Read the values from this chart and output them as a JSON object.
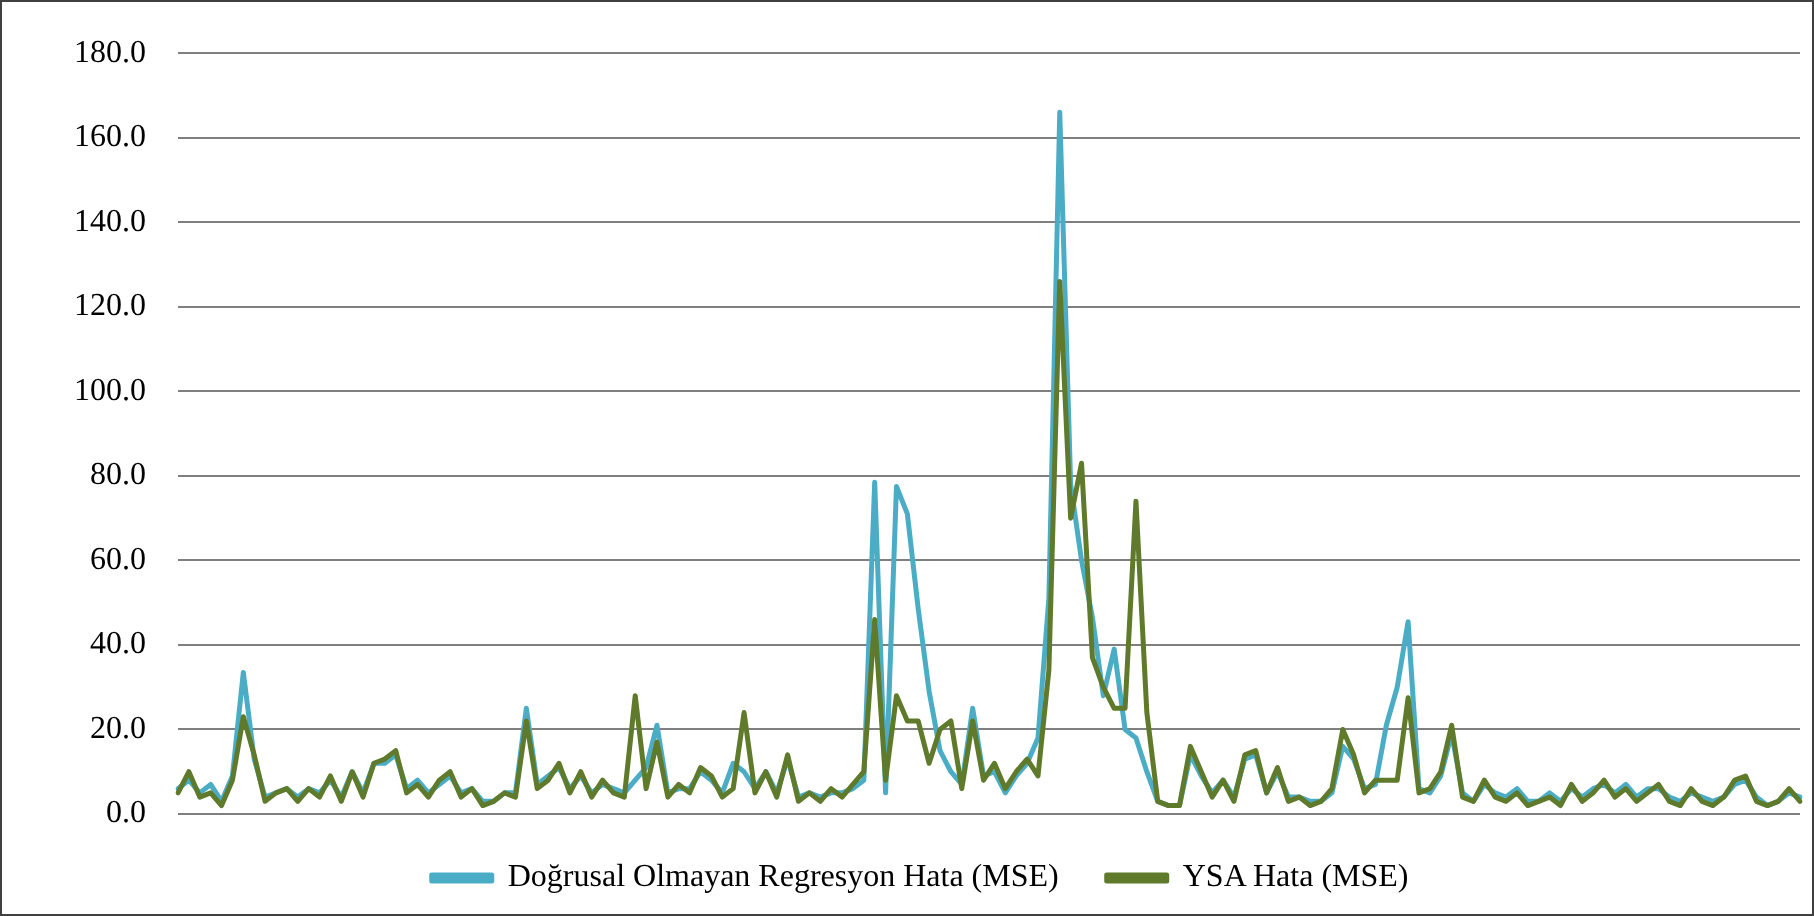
{
  "chart_data": {
    "type": "line",
    "categories": [
      null,
      null,
      null,
      null,
      null,
      null,
      null,
      null,
      null,
      null,
      null,
      null,
      null,
      null,
      null,
      null,
      null,
      null,
      null,
      null,
      null,
      null,
      null,
      null,
      null,
      null,
      null,
      null,
      null,
      null,
      null,
      null,
      null,
      null,
      null,
      null,
      null,
      null,
      null,
      null,
      null,
      null,
      null,
      null,
      null,
      null,
      null,
      null,
      null,
      null,
      null,
      null,
      null,
      null,
      null,
      null,
      null,
      null,
      null,
      null,
      null,
      null,
      null,
      null,
      null,
      null,
      null,
      null,
      null,
      null,
      null,
      null,
      null,
      null,
      null,
      null,
      null,
      null,
      null,
      null,
      null,
      null,
      null,
      null,
      null,
      null,
      null,
      null,
      null,
      null,
      null,
      null,
      null,
      null,
      null,
      null,
      null,
      null,
      null,
      null,
      null,
      null,
      null,
      null,
      null,
      null,
      null,
      null,
      null,
      null,
      null,
      null,
      null,
      null,
      null,
      null,
      null,
      null,
      null,
      null,
      null,
      null,
      null,
      null,
      null,
      null,
      null,
      null,
      null,
      null,
      null,
      null,
      null,
      null,
      null,
      null,
      null,
      null,
      null,
      null,
      null,
      null,
      null,
      null,
      null,
      null,
      null,
      null,
      null,
      null
    ],
    "series": [
      {
        "name": "Doğrusal Olmayan Regresyon Hata (MSE)",
        "color": "#4bacc6",
        "values": [
          6,
          8,
          5,
          7,
          3,
          9,
          33.5,
          13,
          4,
          5,
          6,
          4,
          6,
          5,
          8,
          4,
          10,
          5,
          12,
          12,
          14,
          6,
          8,
          5,
          7,
          9,
          5,
          6,
          3,
          3,
          5,
          5,
          25,
          7,
          9,
          11,
          6,
          9,
          5,
          7,
          6,
          5,
          8,
          11,
          21,
          5,
          6,
          6,
          10,
          8,
          5,
          12,
          10,
          6,
          10,
          5,
          13,
          4,
          5,
          4,
          5,
          5,
          6,
          8,
          78.5,
          5,
          77.5,
          71,
          48.5,
          29,
          15,
          10,
          7,
          25,
          9,
          10,
          5,
          9,
          12,
          18,
          51,
          166,
          78,
          60,
          46.5,
          28,
          39,
          20,
          18,
          10,
          3,
          2,
          2,
          14,
          9,
          5,
          8,
          4,
          13,
          14,
          5,
          10,
          4,
          4,
          3,
          3,
          5,
          16,
          13,
          6,
          7,
          21,
          30,
          45.5,
          6,
          5,
          9,
          19,
          5,
          3,
          7,
          5,
          4,
          6,
          3,
          3,
          5,
          3,
          6,
          4,
          6,
          7,
          5,
          7,
          4,
          6,
          6,
          4,
          3,
          5,
          4,
          3,
          4,
          7,
          8,
          4,
          2,
          3,
          5,
          4
        ]
      },
      {
        "name": "YSA Hata (MSE)",
        "color": "#5f7a2a",
        "values": [
          5,
          10,
          4,
          5,
          2,
          8,
          23,
          14,
          3,
          5,
          6,
          3,
          6,
          4,
          9,
          3,
          10,
          4,
          12,
          13,
          15,
          5,
          7,
          4,
          8,
          10,
          4,
          6,
          2,
          3,
          5,
          4,
          22,
          6,
          8,
          12,
          5,
          10,
          4,
          8,
          5,
          4,
          28,
          6,
          17,
          4,
          7,
          5,
          11,
          9,
          4,
          6,
          24,
          5,
          10,
          4,
          14,
          3,
          5,
          3,
          6,
          4,
          7,
          10,
          46,
          8,
          28,
          22,
          22,
          12,
          20,
          22,
          6,
          22,
          8,
          12,
          6,
          10,
          13,
          9,
          34,
          126,
          70,
          83,
          37,
          30,
          25,
          25,
          74,
          24,
          3,
          2,
          2,
          16,
          10,
          4,
          8,
          3,
          14,
          15,
          5,
          11,
          3,
          4,
          2,
          3,
          6,
          20,
          14,
          5,
          8,
          8,
          8,
          27.5,
          5,
          6,
          10,
          21,
          4,
          3,
          8,
          4,
          3,
          5,
          2,
          3,
          4,
          2,
          7,
          3,
          5,
          8,
          4,
          6,
          3,
          5,
          7,
          3,
          2,
          6,
          3,
          2,
          4,
          8,
          9,
          3,
          2,
          3,
          6,
          3
        ]
      }
    ],
    "ylim": [
      0,
      180
    ],
    "yticks": [
      {
        "value": 0,
        "label": "0.0"
      },
      {
        "value": 20,
        "label": "20.0"
      },
      {
        "value": 40,
        "label": "40.0"
      },
      {
        "value": 60,
        "label": "60.0"
      },
      {
        "value": 80,
        "label": "80.0"
      },
      {
        "value": 100,
        "label": "100.0"
      },
      {
        "value": 120,
        "label": "120.0"
      },
      {
        "value": 140,
        "label": "140.0"
      },
      {
        "value": 160,
        "label": "160.0"
      },
      {
        "value": 180,
        "label": "180.0"
      }
    ],
    "grid": "y",
    "legend": "bottom",
    "tick_labels": "y",
    "marker": "none"
  }
}
